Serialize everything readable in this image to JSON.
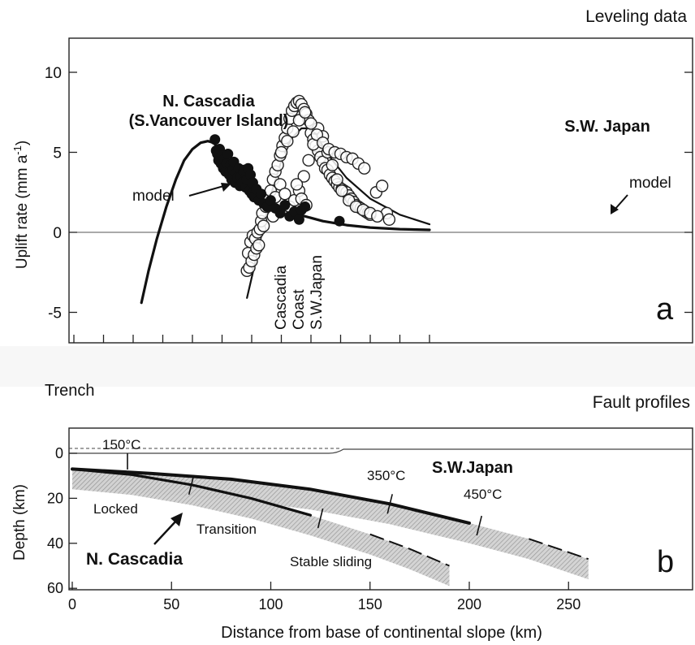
{
  "chart_data": [
    {
      "type": "scatter",
      "panel_label": "a",
      "title": "Leveling data",
      "ylabel": "Uplift rate (mm a",
      "ylabel_sup": "-1",
      "ylabel_close": ")",
      "xlim": [
        -25,
        305
      ],
      "ylim": [
        -7,
        12
      ],
      "yticks": [
        -5,
        0,
        5,
        10
      ],
      "grid": false,
      "annotations": {
        "cascadia_title_1": "N. Cascadia",
        "cascadia_title_2": "(S.Vancouver Island)",
        "japan_title": "S.W. Japan",
        "model_left": "model",
        "model_right": "model",
        "coast_1": "Cascadia",
        "coast_2": "Coast",
        "coast_3": "S.W.Japan"
      },
      "series": [
        {
          "name": "N. Cascadia model",
          "kind": "line",
          "x": [
            57,
            63,
            70,
            78,
            86,
            93,
            100,
            107,
            113,
            118
          ],
          "y": [
            -4.4,
            -2.4,
            -0.4,
            1.6,
            3.3,
            4.5,
            5.2,
            5.6,
            5.7,
            5.6
          ]
        },
        {
          "name": "N. Cascadia model tail",
          "kind": "line",
          "x": [
            118,
            125,
            135,
            150,
            170,
            190,
            210,
            230,
            250,
            275,
            300
          ],
          "y": [
            5.6,
            4.9,
            3.8,
            2.5,
            1.6,
            1.1,
            0.7,
            0.45,
            0.3,
            0.2,
            0.15
          ]
        },
        {
          "name": "S.W. Japan model",
          "kind": "line",
          "x": [
            146,
            152,
            160,
            168,
            176,
            184,
            192,
            198,
            205,
            215,
            230,
            250,
            275,
            300
          ],
          "y": [
            -4.1,
            -2.2,
            0.4,
            2.8,
            4.7,
            5.9,
            6.5,
            6.5,
            6.0,
            4.8,
            3.4,
            2.1,
            1.1,
            0.5
          ]
        },
        {
          "name": "N. Cascadia leveling",
          "kind": "filled",
          "x": [
            119,
            120,
            121,
            122,
            123,
            124,
            125,
            126,
            127,
            128,
            129,
            130,
            131,
            132,
            133,
            134,
            135,
            136,
            137,
            138,
            139,
            140,
            141,
            142,
            143,
            144,
            145,
            146,
            147,
            148,
            149,
            150,
            151,
            152,
            154,
            156,
            158,
            160,
            163,
            166,
            170,
            174,
            178,
            182,
            186,
            190,
            192,
            195,
            224
          ],
          "y": [
            5.8,
            5.1,
            4.9,
            4.5,
            5.2,
            4.3,
            4.8,
            4.0,
            4.6,
            3.8,
            4.3,
            4.9,
            3.6,
            4.2,
            3.3,
            3.9,
            4.4,
            3.1,
            3.7,
            3.4,
            4.0,
            2.9,
            3.5,
            3.1,
            3.8,
            3.9,
            2.8,
            3.3,
            4.0,
            2.6,
            3.6,
            2.4,
            3.1,
            2.2,
            2.7,
            2.0,
            2.4,
            1.8,
            1.6,
            2.0,
            1.5,
            1.2,
            1.7,
            1.0,
            1.3,
            0.8,
            1.4,
            1.6,
            0.7
          ]
        },
        {
          "name": "S.W. Japan leveling",
          "kind": "open",
          "x": [
            146,
            147,
            148,
            149,
            150,
            151,
            152,
            153,
            154,
            155,
            156,
            157,
            158,
            159,
            160,
            162,
            164,
            166,
            168,
            170,
            172,
            174,
            176,
            178,
            180,
            182,
            184,
            186,
            188,
            190,
            192,
            194,
            196,
            198,
            200,
            202,
            204,
            206,
            208,
            210,
            212,
            214,
            216,
            218,
            220,
            222,
            224,
            226,
            228,
            230,
            232,
            234,
            236,
            238,
            240,
            242,
            244,
            246,
            248,
            250,
            255,
            260,
            264,
            266,
            168,
            170,
            174,
            178,
            182,
            186,
            190,
            194,
            198,
            202,
            206,
            210,
            214,
            218,
            222,
            226,
            232,
            238,
            244,
            250,
            256,
            175,
            180,
            185,
            190,
            195,
            200,
            205,
            210,
            215,
            220,
            225,
            230,
            235,
            240,
            245,
            188,
            192,
            196
          ],
          "y": [
            -2.4,
            -1.3,
            -2.2,
            -0.6,
            -1.8,
            -0.2,
            -1.4,
            -0.4,
            -1.0,
            0.0,
            -0.8,
            0.2,
            0.7,
            1.2,
            0.4,
            1.6,
            2.0,
            2.6,
            3.3,
            3.8,
            4.2,
            4.8,
            5.4,
            5.9,
            6.5,
            7.1,
            7.6,
            7.9,
            8.1,
            8.2,
            8.0,
            7.7,
            7.4,
            7.0,
            6.2,
            5.8,
            5.4,
            5.1,
            4.7,
            4.4,
            4.0,
            3.9,
            3.6,
            3.4,
            3.2,
            3.0,
            2.8,
            2.7,
            2.6,
            2.5,
            2.3,
            2.1,
            1.9,
            1.7,
            1.6,
            1.5,
            1.4,
            1.3,
            1.2,
            1.1,
            2.5,
            2.9,
            1.2,
            0.8,
            1.0,
            2.2,
            3.0,
            2.4,
            1.6,
            2.0,
            2.6,
            3.5,
            4.5,
            5.5,
            6.5,
            6.0,
            5.0,
            4.2,
            3.3,
            2.6,
            2.0,
            1.6,
            1.4,
            1.2,
            1.0,
            5.0,
            5.7,
            6.3,
            7.0,
            7.5,
            6.8,
            6.1,
            5.6,
            5.2,
            5.0,
            4.9,
            4.7,
            4.6,
            4.3,
            4.0,
            3.0,
            2.1,
            1.7
          ]
        }
      ]
    },
    {
      "type": "line",
      "panel_label": "b",
      "title": "Fault profiles",
      "left_note": "Trench",
      "xlabel": "Distance from base of continental slope (km)",
      "ylabel": "Depth (km)",
      "xlim": [
        0,
        305
      ],
      "ylim": [
        0,
        60
      ],
      "xticks": [
        0,
        50,
        100,
        150,
        200,
        250
      ],
      "yticks": [
        0,
        20,
        40,
        60
      ],
      "grid": false,
      "annotations": {
        "iso150": "150°C",
        "iso350": "350°C",
        "iso450": "450°C",
        "japan_label": "S.W.Japan",
        "cascadia_label": "N. Cascadia",
        "zone_locked": "Locked",
        "zone_transition": "Transition",
        "zone_stable": "Stable sliding"
      },
      "series": [
        {
          "name": "S.W.Japan fault",
          "x": [
            0,
            40,
            80,
            120,
            160,
            200,
            230,
            260
          ],
          "y": [
            7,
            9,
            11.5,
            16,
            22.5,
            31,
            38,
            47
          ]
        },
        {
          "name": "N. Cascadia fault",
          "x": [
            0,
            30,
            60,
            90,
            120,
            150,
            170,
            190
          ],
          "y": [
            7,
            9.5,
            14,
            20,
            27.5,
            36,
            42.5,
            50
          ]
        }
      ]
    }
  ]
}
